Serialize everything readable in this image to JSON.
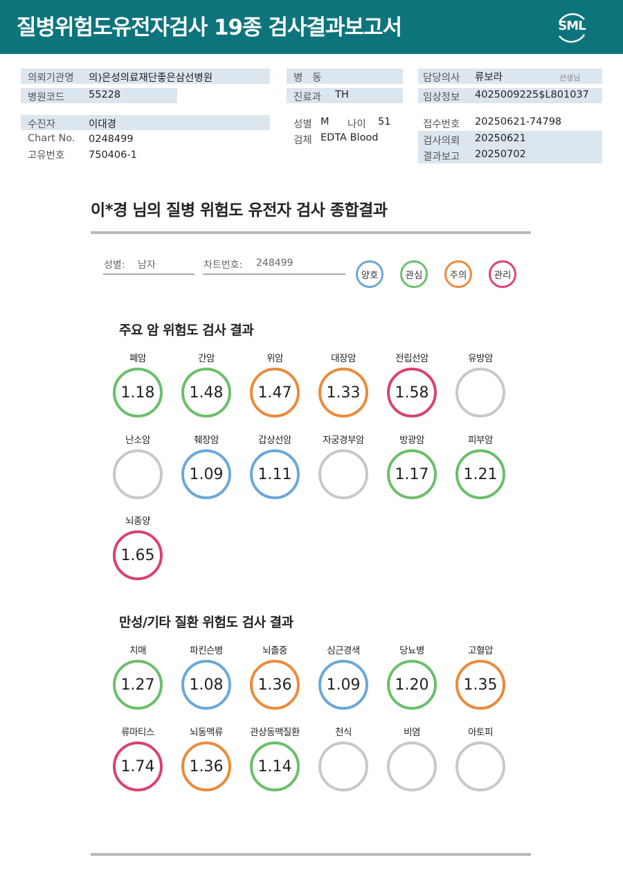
{
  "header": {
    "title": "질병위험도유전자검사 19종 검사결과보고서",
    "logo_text": "SML"
  },
  "info": {
    "institution": {
      "label": "의뢰기관명",
      "value": "의)은성의료재단좋은삼선병원"
    },
    "hospital_code": {
      "label": "병원코드",
      "value": "55228"
    },
    "ward": {
      "label": "병   동",
      "value": ""
    },
    "department": {
      "label": "진료과",
      "value": "TH"
    },
    "doctor": {
      "label": "담당의사",
      "value": "류보라",
      "suffix": "선생님"
    },
    "clinical_info": {
      "label": "임상정보",
      "value": "4025009225$L801037"
    },
    "patient": {
      "label": "수진자",
      "value": "이대경"
    },
    "chart_no": {
      "label": "Chart No.",
      "value": "0248499"
    },
    "unique_no": {
      "label": "고유번호",
      "value": "750406-1"
    },
    "sex": {
      "label": "성별",
      "value": "M"
    },
    "age": {
      "label": "나이",
      "value": "51"
    },
    "specimen": {
      "label": "검체",
      "value": "EDTA Blood"
    },
    "receipt_no": {
      "label": "접수번호",
      "value": "20250621-74798"
    },
    "request_date": {
      "label": "검사의뢰",
      "value": "20250621"
    },
    "report_date": {
      "label": "결과보고",
      "value": "20250702"
    }
  },
  "summary": {
    "title": "이*경 님의 질병 위험도 유전자 검사 종합결과",
    "sex_label": "성별:",
    "sex_value": "남자",
    "chart_label": "차트번호:",
    "chart_value": "248499"
  },
  "legend": [
    {
      "label": "양호",
      "color": "#6aa8d8"
    },
    {
      "label": "관심",
      "color": "#6abf69"
    },
    {
      "label": "주의",
      "color": "#ec8a3a"
    },
    {
      "label": "관리",
      "color": "#d9426f"
    }
  ],
  "cancer_section": {
    "title": "주요 암 위험도 검사 결과",
    "items": [
      {
        "label": "폐암",
        "value": "1.18",
        "status": "관심"
      },
      {
        "label": "간암",
        "value": "1.48",
        "status": "관심"
      },
      {
        "label": "위암",
        "value": "1.47",
        "status": "주의"
      },
      {
        "label": "대장암",
        "value": "1.33",
        "status": "주의"
      },
      {
        "label": "전립선암",
        "value": "1.58",
        "status": "관리"
      },
      {
        "label": "유방암",
        "value": "",
        "status": "none"
      },
      {
        "label": "난소암",
        "value": "",
        "status": "none"
      },
      {
        "label": "췌장암",
        "value": "1.09",
        "status": "양호"
      },
      {
        "label": "갑상선암",
        "value": "1.11",
        "status": "양호"
      },
      {
        "label": "자궁경부암",
        "value": "",
        "status": "none"
      },
      {
        "label": "방광암",
        "value": "1.17",
        "status": "관심"
      },
      {
        "label": "피부암",
        "value": "1.21",
        "status": "관심"
      },
      {
        "label": "뇌종양",
        "value": "1.65",
        "status": "관리"
      }
    ]
  },
  "chronic_section": {
    "title": "만성/기타 질환 위험도 검사 결과",
    "items": [
      {
        "label": "치매",
        "value": "1.27",
        "status": "관심"
      },
      {
        "label": "파킨슨병",
        "value": "1.08",
        "status": "양호"
      },
      {
        "label": "뇌졸중",
        "value": "1.36",
        "status": "주의"
      },
      {
        "label": "심근경색",
        "value": "1.09",
        "status": "양호"
      },
      {
        "label": "당뇨병",
        "value": "1.20",
        "status": "관심"
      },
      {
        "label": "고혈압",
        "value": "1.35",
        "status": "주의"
      },
      {
        "label": "류마티스",
        "value": "1.74",
        "status": "관리"
      },
      {
        "label": "뇌동맥류",
        "value": "1.36",
        "status": "주의"
      },
      {
        "label": "관상동맥질환",
        "value": "1.14",
        "status": "관심"
      },
      {
        "label": "천식",
        "value": "",
        "status": "none"
      },
      {
        "label": "비염",
        "value": "",
        "status": "none"
      },
      {
        "label": "아토피",
        "value": "",
        "status": "none"
      }
    ]
  },
  "colors": {
    "none": "#c8c8c8",
    "header": "#0e747c"
  }
}
